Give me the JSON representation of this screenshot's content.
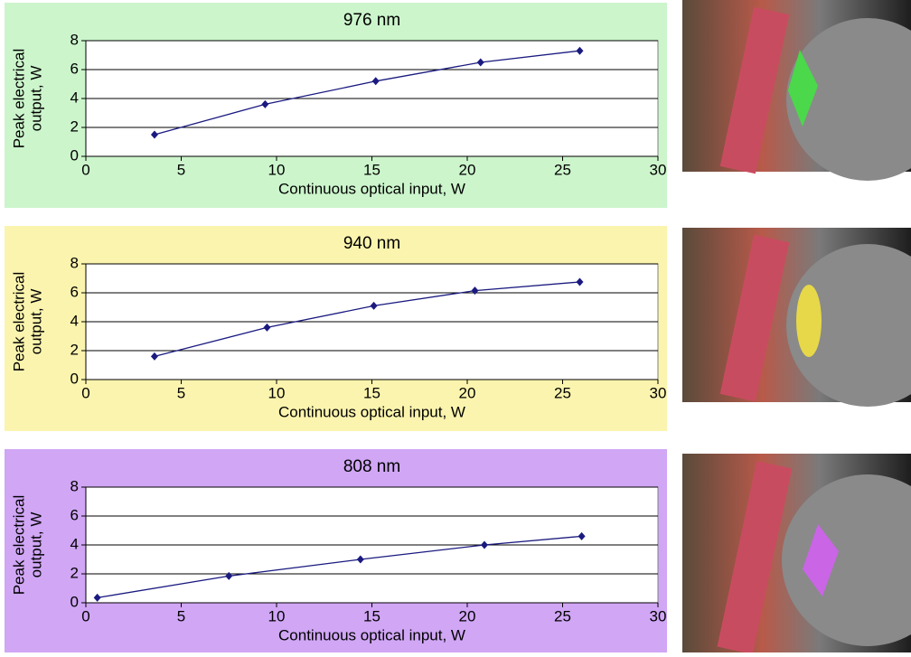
{
  "chart_data": [
    {
      "type": "line",
      "title": "976 nm",
      "xlabel": "Continuous optical input, W",
      "ylabel": [
        "Peak electrical",
        "output, W"
      ],
      "x": [
        3.6,
        9.4,
        15.2,
        20.7,
        25.9
      ],
      "values": [
        1.5,
        3.6,
        5.2,
        6.5,
        7.3
      ],
      "color": "#1a1a80",
      "background": "#ccf5cc",
      "xlim": [
        0,
        30
      ],
      "xticks": [
        0,
        5,
        10,
        15,
        20,
        25,
        30
      ],
      "ylim": [
        0,
        8
      ],
      "yticks": [
        0,
        2,
        4,
        6,
        8
      ],
      "grid": true
    },
    {
      "type": "line",
      "title": "940 nm",
      "xlabel": "Continuous optical input, W",
      "ylabel": [
        "Peak electrical",
        "output, W"
      ],
      "x": [
        3.6,
        9.5,
        15.1,
        20.4,
        25.9
      ],
      "values": [
        1.6,
        3.6,
        5.1,
        6.15,
        6.75
      ],
      "color": "#1a1a80",
      "background": "#fbf4ae",
      "xlim": [
        0,
        30
      ],
      "xticks": [
        0,
        5,
        10,
        15,
        20,
        25,
        30
      ],
      "ylim": [
        0,
        8
      ],
      "yticks": [
        0,
        2,
        4,
        6,
        8
      ],
      "grid": true
    },
    {
      "type": "line",
      "title": "808 nm",
      "xlabel": "Continuous optical input, W",
      "ylabel": [
        "Peak electrical",
        "output, W"
      ],
      "x": [
        0.6,
        7.5,
        14.4,
        20.9,
        26.0
      ],
      "values": [
        0.35,
        1.85,
        3.0,
        4.0,
        4.6
      ],
      "color": "#1a1a80",
      "background": "#d0a6f5",
      "xlim": [
        0,
        30
      ],
      "xticks": [
        0,
        5,
        10,
        15,
        20,
        25,
        30
      ],
      "ylim": [
        0,
        8
      ],
      "yticks": [
        0,
        2,
        4,
        6,
        8
      ],
      "grid": true
    }
  ]
}
